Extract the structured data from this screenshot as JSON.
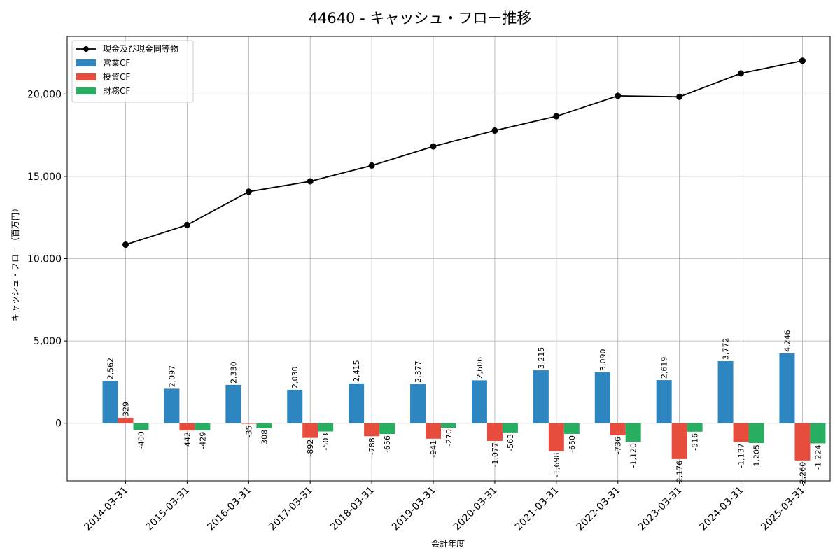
{
  "chart_data": {
    "type": "bar",
    "title": "44640 - キャッシュ・フロー推移",
    "xlabel": "会計年度",
    "ylabel": "キャッシュ・フロー（百万円）",
    "categories": [
      "2014-03-31",
      "2015-03-31",
      "2016-03-31",
      "2017-03-31",
      "2018-03-31",
      "2019-03-31",
      "2020-03-31",
      "2021-03-31",
      "2022-03-31",
      "2023-03-31",
      "2024-03-31",
      "2025-03-31"
    ],
    "ylim": [
      -3500,
      23500
    ],
    "yticks": [
      0,
      5000,
      10000,
      15000,
      20000
    ],
    "ytick_labels": [
      "0",
      "5,000",
      "10,000",
      "15,000",
      "20,000"
    ],
    "grid": true,
    "legend_position": "top-left",
    "line_series": {
      "name": "現金及び現金同等物",
      "color": "#000000",
      "values": [
        10850,
        12050,
        14070,
        14700,
        15660,
        16820,
        17780,
        18650,
        19890,
        19830,
        21250,
        22020
      ]
    },
    "series": [
      {
        "name": "営業CF",
        "color": "#2e86c1",
        "values": [
          2562,
          2097,
          2330,
          2030,
          2415,
          2377,
          2606,
          3215,
          3090,
          2619,
          3772,
          4246
        ],
        "labels": [
          "2,562",
          "2,097",
          "2,330",
          "2,030",
          "2,415",
          "2,377",
          "2,606",
          "3,215",
          "3,090",
          "2,619",
          "3,772",
          "4,246"
        ]
      },
      {
        "name": "投資CF",
        "color": "#e74c3c",
        "values": [
          329,
          -442,
          -35,
          -892,
          -788,
          -941,
          -1077,
          -1698,
          -736,
          -2176,
          -1137,
          -2260
        ],
        "labels": [
          "329",
          "-442",
          "-35",
          "-892",
          "-788",
          "-941",
          "-1,077",
          "-1,698",
          "-736",
          "-2,176",
          "-1,137",
          "-2,260"
        ]
      },
      {
        "name": "財務CF",
        "color": "#27ae60",
        "values": [
          -400,
          -429,
          -308,
          -503,
          -656,
          -270,
          -563,
          -650,
          -1120,
          -516,
          -1205,
          -1224
        ],
        "labels": [
          "-400",
          "-429",
          "-308",
          "-503",
          "-656",
          "-270",
          "-563",
          "-650",
          "-1,120",
          "-516",
          "-1,205",
          "-1,224"
        ]
      }
    ]
  }
}
